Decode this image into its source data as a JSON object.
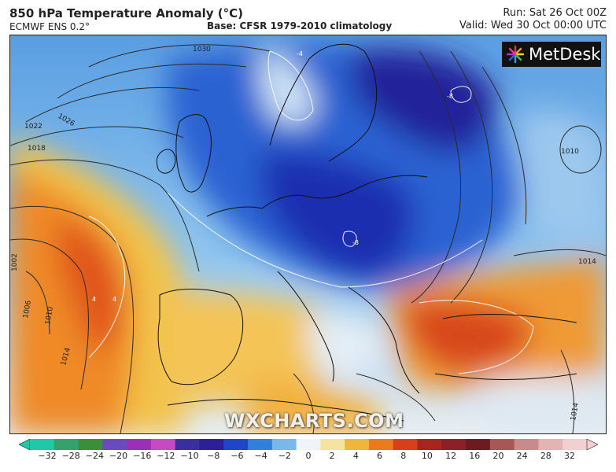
{
  "header": {
    "title": "850 hPa Temperature Anomaly (°C)",
    "model": "ECMWF ENS 0.2°",
    "base": "Base: CFSR 1979-2010 climatology",
    "run": "Run: Sat 26 Oct 00Z",
    "valid": "Valid: Wed 30 Oct 00:00 UTC"
  },
  "logo": {
    "text": "MetDesk"
  },
  "watermark": "WXCHARTS.COM",
  "isobars": [
    "1030",
    "1026",
    "1022",
    "1018",
    "1010",
    "1014",
    "1002",
    "1006",
    "1010",
    "1014",
    "1014"
  ],
  "anomaly_labels": [
    "-8",
    "-8",
    "4",
    "4",
    "-4"
  ],
  "colorbar": {
    "ticks": [
      "−32",
      "−28",
      "−24",
      "−20",
      "−16",
      "−12",
      "−10",
      "−8",
      "−6",
      "−4",
      "−2",
      "0",
      "2",
      "4",
      "6",
      "8",
      "10",
      "12",
      "16",
      "20",
      "24",
      "28",
      "32"
    ],
    "colors": [
      "#1fc9a6",
      "#34a36b",
      "#3a8f38",
      "#6a4ac0",
      "#9a2fb8",
      "#c74ac4",
      "#3a2fa0",
      "#2d1f9a",
      "#1f46c9",
      "#2f7fdc",
      "#79b8ea",
      "#eef4f8",
      "#f4e4a0",
      "#f0b63c",
      "#ea7a1c",
      "#d8401a",
      "#a8241e",
      "#8c1f28",
      "#6e1a22",
      "#a85656",
      "#c88a8a",
      "#e4b4b4",
      "#f2d0d0"
    ]
  }
}
